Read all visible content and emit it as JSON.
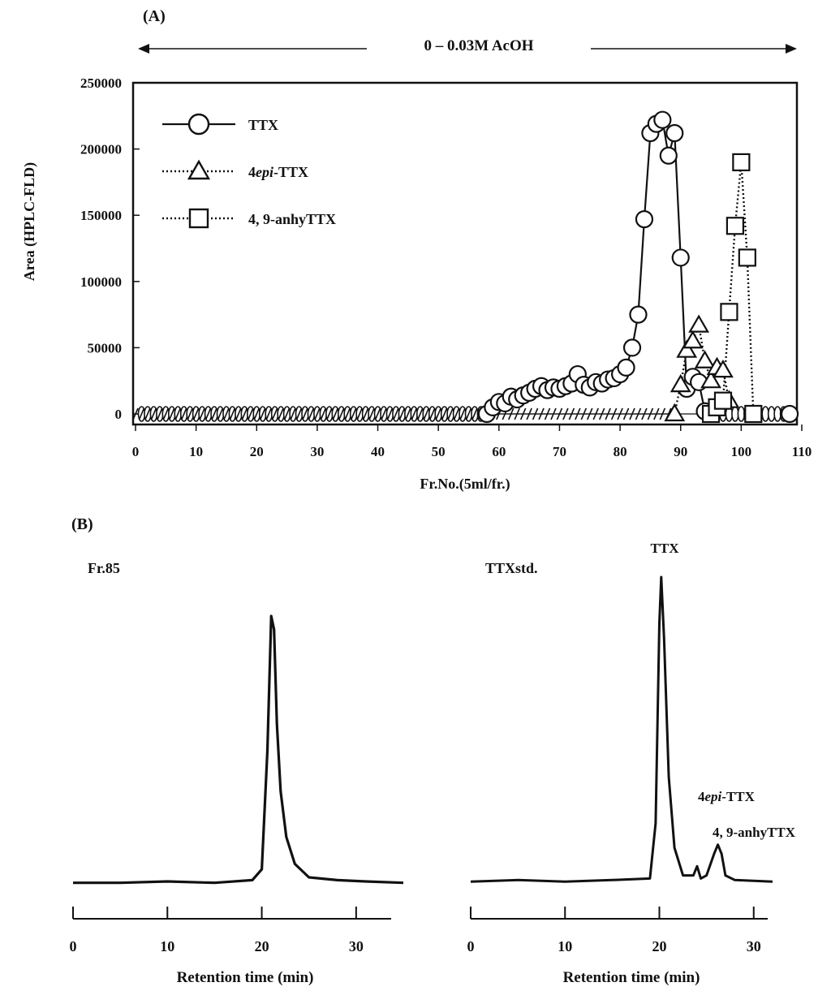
{
  "panel_a_label": "(A)",
  "panel_b_label": "(B)",
  "gradient_label": "0 – 0.03M AcOH",
  "colors": {
    "ink": "#111111"
  },
  "chart_data": [
    {
      "type": "scatter",
      "xlabel": "Fr.No.(5ml/fr.)",
      "ylabel": "Area (HPLC-FLD)",
      "xlim": [
        0,
        110
      ],
      "ylim": [
        0,
        250000
      ],
      "xticks": [
        "0",
        "10",
        "20",
        "30",
        "40",
        "50",
        "60",
        "70",
        "80",
        "90",
        "100",
        "110"
      ],
      "yticks": [
        "0",
        "50000",
        "100000",
        "150000",
        "200000",
        "250000"
      ],
      "legend_position": "top-left",
      "series": [
        {
          "name": "TTX",
          "marker": "circle",
          "line": "solid",
          "baseline_from": 1,
          "baseline_to": 108,
          "x": [
            58,
            59,
            60,
            61,
            62,
            63,
            64,
            65,
            66,
            67,
            68,
            69,
            70,
            71,
            72,
            73,
            74,
            75,
            76,
            77,
            78,
            79,
            80,
            81,
            82,
            83,
            84,
            85,
            86,
            87,
            88,
            89,
            90,
            91,
            92,
            93,
            94
          ],
          "y": [
            0,
            5000,
            9000,
            8000,
            13000,
            11000,
            14000,
            16000,
            19000,
            21000,
            18000,
            20000,
            19000,
            21000,
            23000,
            30000,
            22000,
            20000,
            24000,
            23000,
            26000,
            27000,
            30000,
            35000,
            50000,
            75000,
            147000,
            212000,
            219000,
            222000,
            195000,
            212000,
            118000,
            19000,
            28000,
            24000,
            2000
          ]
        },
        {
          "name": "4epi-TTX",
          "marker": "triangle",
          "line": "dotted",
          "baseline_from": 0,
          "baseline_to": 89,
          "x": [
            89,
            90,
            91,
            92,
            93,
            94,
            95,
            96,
            97,
            98
          ],
          "y": [
            0,
            22000,
            48000,
            55000,
            67000,
            40000,
            25000,
            35000,
            33000,
            10000
          ]
        },
        {
          "name": "4, 9-anhyTTX",
          "marker": "square",
          "line": "dotted",
          "x": [
            95,
            96,
            97,
            98,
            99,
            100,
            101,
            102
          ],
          "y": [
            0,
            5000,
            10000,
            77000,
            142000,
            190000,
            118000,
            0
          ]
        }
      ]
    },
    {
      "type": "line",
      "title": "Fr.85",
      "xlabel": "Retention time (min)",
      "xlim": [
        0,
        35
      ],
      "xticks": [
        "0",
        "10",
        "20",
        "30"
      ],
      "series": [
        {
          "x": [
            0,
            5,
            10,
            15,
            19,
            20,
            20.6,
            21,
            21.3,
            21.6,
            22,
            22.6,
            23.5,
            25,
            28,
            31,
            35
          ],
          "y": [
            0.01,
            0.01,
            0.015,
            0.01,
            0.02,
            0.06,
            0.5,
            1.0,
            0.95,
            0.6,
            0.35,
            0.18,
            0.08,
            0.03,
            0.02,
            0.015,
            0.01
          ]
        }
      ]
    },
    {
      "type": "line",
      "title": "TTXstd.",
      "xlabel": "Retention time (min)",
      "xlim": [
        0,
        32
      ],
      "xticks": [
        "0",
        "10",
        "20",
        "30"
      ],
      "annotations": [
        {
          "text": "TTX",
          "x": 20.2
        },
        {
          "text": "4epi-TTX",
          "x": 24
        },
        {
          "text": "4, 9-anhyTTX",
          "x": 26
        }
      ],
      "series": [
        {
          "x": [
            0,
            5,
            10,
            15,
            19,
            19.6,
            20,
            20.2,
            20.5,
            21,
            21.6,
            22.5,
            23.6,
            24,
            24.4,
            25,
            25.8,
            26.2,
            26.6,
            27,
            28,
            32
          ],
          "y": [
            0.01,
            0.015,
            0.01,
            0.015,
            0.02,
            0.2,
            0.85,
            1.0,
            0.8,
            0.35,
            0.12,
            0.03,
            0.03,
            0.06,
            0.02,
            0.03,
            0.1,
            0.13,
            0.1,
            0.03,
            0.015,
            0.01
          ]
        }
      ]
    }
  ]
}
